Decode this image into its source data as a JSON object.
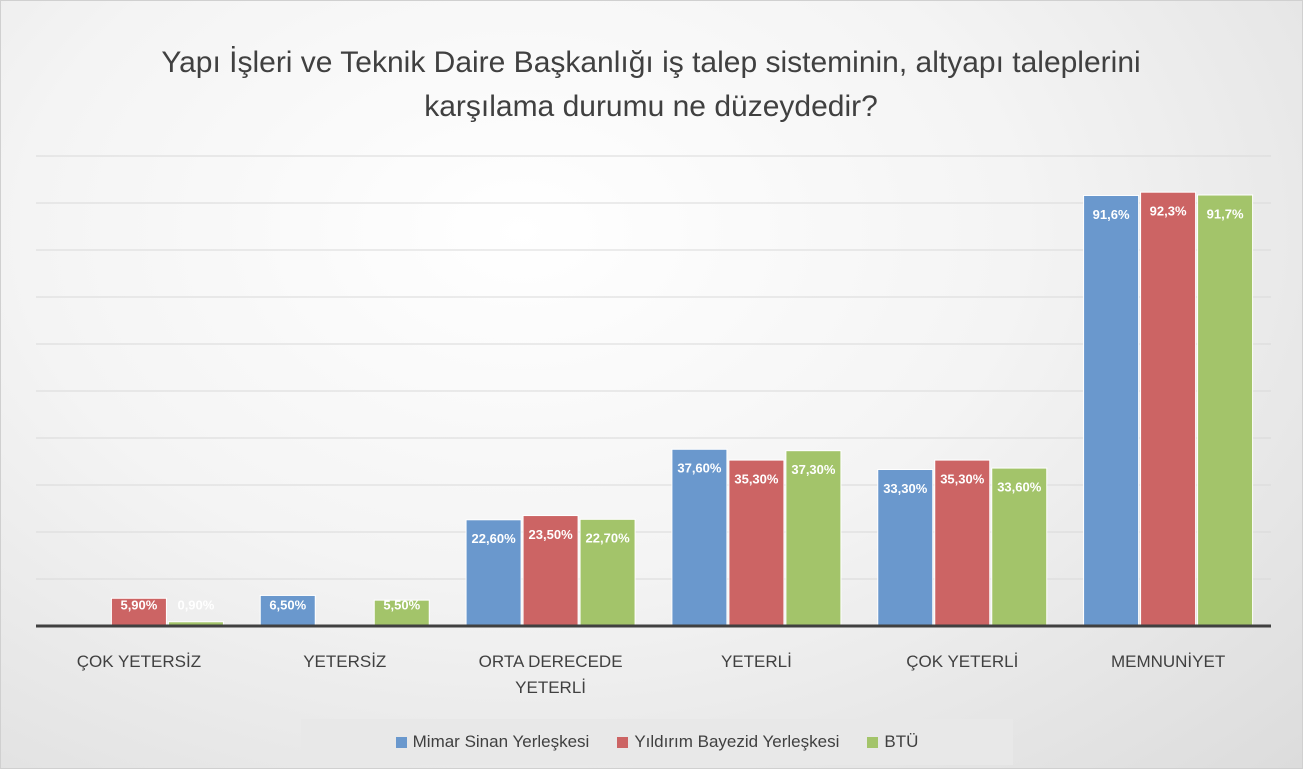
{
  "chart_data": {
    "type": "bar",
    "title": "Yapı İşleri ve Teknik Daire Başkanlığı iş talep sisteminin, altyapı taleplerini karşılama durumu ne düzeydedir?",
    "categories": [
      "ÇOK YETERSİZ",
      "YETERSİZ",
      "ORTA DERECEDE YETERLİ",
      "YETERLİ",
      "ÇOK YETERLİ",
      "MEMNUNİYET"
    ],
    "series": [
      {
        "name": "Mimar Sinan Yerleşkesi",
        "color": "#6a98cd",
        "values": [
          null,
          6.5,
          22.6,
          37.6,
          33.3,
          91.6
        ],
        "value_labels": [
          null,
          "6,50%",
          "22,60%",
          "37,60%",
          "33,30%",
          "91,6%"
        ]
      },
      {
        "name": "Yıldırım Bayezid Yerleşkesi",
        "color": "#cc6464",
        "values": [
          5.9,
          null,
          23.5,
          35.3,
          35.3,
          92.3
        ],
        "value_labels": [
          "5,90%",
          null,
          "23,50%",
          "35,30%",
          "35,30%",
          "92,3%"
        ]
      },
      {
        "name": "BTÜ",
        "color": "#a3c46a",
        "values": [
          0.9,
          5.5,
          22.7,
          37.3,
          33.6,
          91.7
        ],
        "value_labels": [
          "0,90%",
          "5,50%",
          "22,70%",
          "37,30%",
          "33,60%",
          "91,7%"
        ]
      }
    ],
    "ylim": [
      0,
      100
    ],
    "yticks": [
      0,
      10,
      20,
      30,
      40,
      50,
      60,
      70,
      80,
      90,
      100
    ],
    "grid": true,
    "legend": "bottom"
  }
}
